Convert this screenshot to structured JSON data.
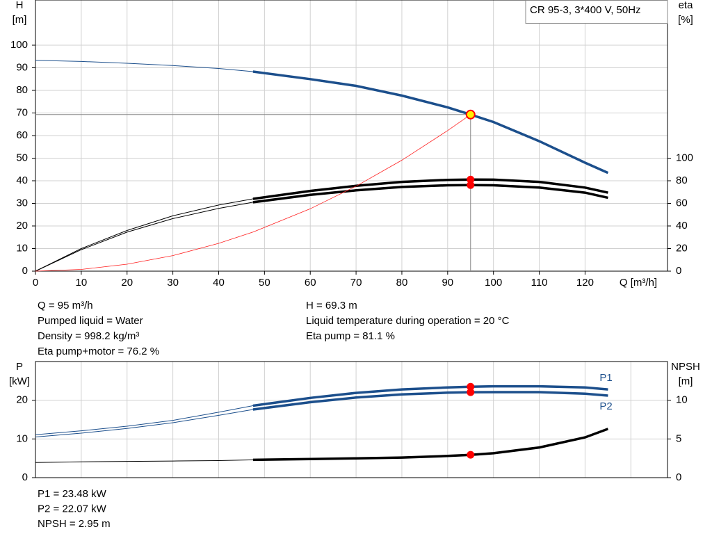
{
  "chart_data": [
    {
      "type": "line",
      "title": "CR 95-3, 3*400 V, 50Hz",
      "ylabel": [
        "H",
        "[m]"
      ],
      "y2label": [
        "eta",
        "[%]"
      ],
      "xlabel": "Q [m³/h]",
      "xlim": [
        0,
        138
      ],
      "xticks": [
        0,
        10,
        20,
        30,
        40,
        50,
        60,
        70,
        80,
        90,
        100,
        110,
        120
      ],
      "ylim": [
        0,
        120
      ],
      "yticks": [
        0,
        10,
        20,
        30,
        40,
        50,
        60,
        70,
        80,
        90,
        100
      ],
      "y2lim": [
        0,
        240
      ],
      "y2ticks": [
        0,
        20,
        40,
        60,
        80,
        100
      ],
      "grid": true,
      "show_xtick_labels": true,
      "thick_from": 47.5,
      "operating_x": 95,
      "x": [
        0,
        10,
        20,
        30,
        40,
        47.5,
        60,
        70,
        80,
        90,
        95,
        100,
        110,
        120,
        125
      ],
      "series": [
        {
          "color": "#1c4f8c",
          "thick": true,
          "marker": "ring",
          "values": [
            93.3,
            92.8,
            92,
            91,
            89.7,
            88.3,
            85,
            82,
            77.7,
            72.5,
            69.3,
            66,
            57.5,
            48,
            43.5
          ]
        },
        {
          "color": "#000000",
          "thick": true,
          "marker": "dot",
          "axis": "y2",
          "values": [
            0,
            20,
            36,
            49,
            58.5,
            64,
            71,
            75.5,
            79,
            80.8,
            81.1,
            81,
            79,
            74,
            69.5
          ]
        },
        {
          "color": "#000000",
          "thick": true,
          "marker": "dot",
          "axis": "y2",
          "values": [
            0,
            19,
            34.5,
            46.5,
            55.5,
            61,
            67.5,
            71.5,
            74.5,
            76,
            76.2,
            76,
            74,
            69.5,
            65
          ]
        },
        {
          "color": "#ff2020",
          "thick": false,
          "values": [
            0,
            0.77,
            3.07,
            6.9,
            12.3,
            17.3,
            27.6,
            37.6,
            49.1,
            62.2,
            69.3,
            null,
            null,
            null,
            null
          ]
        }
      ]
    },
    {
      "type": "line",
      "ylabel": [
        "P",
        "[kW]"
      ],
      "y2label": [
        "NPSH",
        "[m]"
      ],
      "xlim": [
        0,
        138
      ],
      "xticks": [
        0,
        10,
        20,
        30,
        40,
        50,
        60,
        70,
        80,
        90,
        100,
        110,
        120,
        130
      ],
      "ylim": [
        0,
        30
      ],
      "yticks": [
        0,
        10,
        20
      ],
      "y2lim": [
        0,
        15
      ],
      "y2ticks": [
        0,
        5,
        10
      ],
      "grid": true,
      "show_xtick_labels": false,
      "thick_from": 47.5,
      "operating_x": 95,
      "x": [
        0,
        10,
        20,
        30,
        40,
        47.5,
        60,
        70,
        80,
        90,
        95,
        100,
        110,
        120,
        125
      ],
      "series": [
        {
          "name": "P1",
          "label_pos": "above",
          "color": "#1c4f8c",
          "thick": true,
          "marker": "dot",
          "values": [
            11.1,
            12.1,
            13.3,
            14.8,
            16.9,
            18.6,
            20.6,
            21.9,
            22.8,
            23.3,
            23.48,
            23.6,
            23.6,
            23.3,
            22.8
          ]
        },
        {
          "name": "P2",
          "label_pos": "below",
          "color": "#1c4f8c",
          "thick": true,
          "marker": "dot",
          "values": [
            10.5,
            11.5,
            12.7,
            14.2,
            16.1,
            17.6,
            19.5,
            20.7,
            21.5,
            21.95,
            22.07,
            22.1,
            22.1,
            21.7,
            21.2
          ]
        },
        {
          "color": "#000000",
          "thick": true,
          "marker": "dot",
          "axis": "y2",
          "values": [
            1.96,
            2.05,
            2.1,
            2.15,
            2.2,
            2.3,
            2.4,
            2.5,
            2.6,
            2.8,
            2.95,
            3.15,
            3.9,
            5.2,
            6.3
          ]
        }
      ]
    }
  ],
  "readouts": [
    [
      "Q = 95 m³/h",
      "Pumped liquid = Water",
      "Density = 998.2 kg/m³",
      "Eta pump+motor = 76.2 %"
    ],
    [
      "H = 69.3 m",
      "Liquid temperature during operation = 20 °C",
      "Eta pump = 81.1 %"
    ]
  ],
  "power_readouts": [
    "P1 = 23.48 kW",
    "P2 = 22.07 kW",
    "NPSH = 2.95 m"
  ]
}
